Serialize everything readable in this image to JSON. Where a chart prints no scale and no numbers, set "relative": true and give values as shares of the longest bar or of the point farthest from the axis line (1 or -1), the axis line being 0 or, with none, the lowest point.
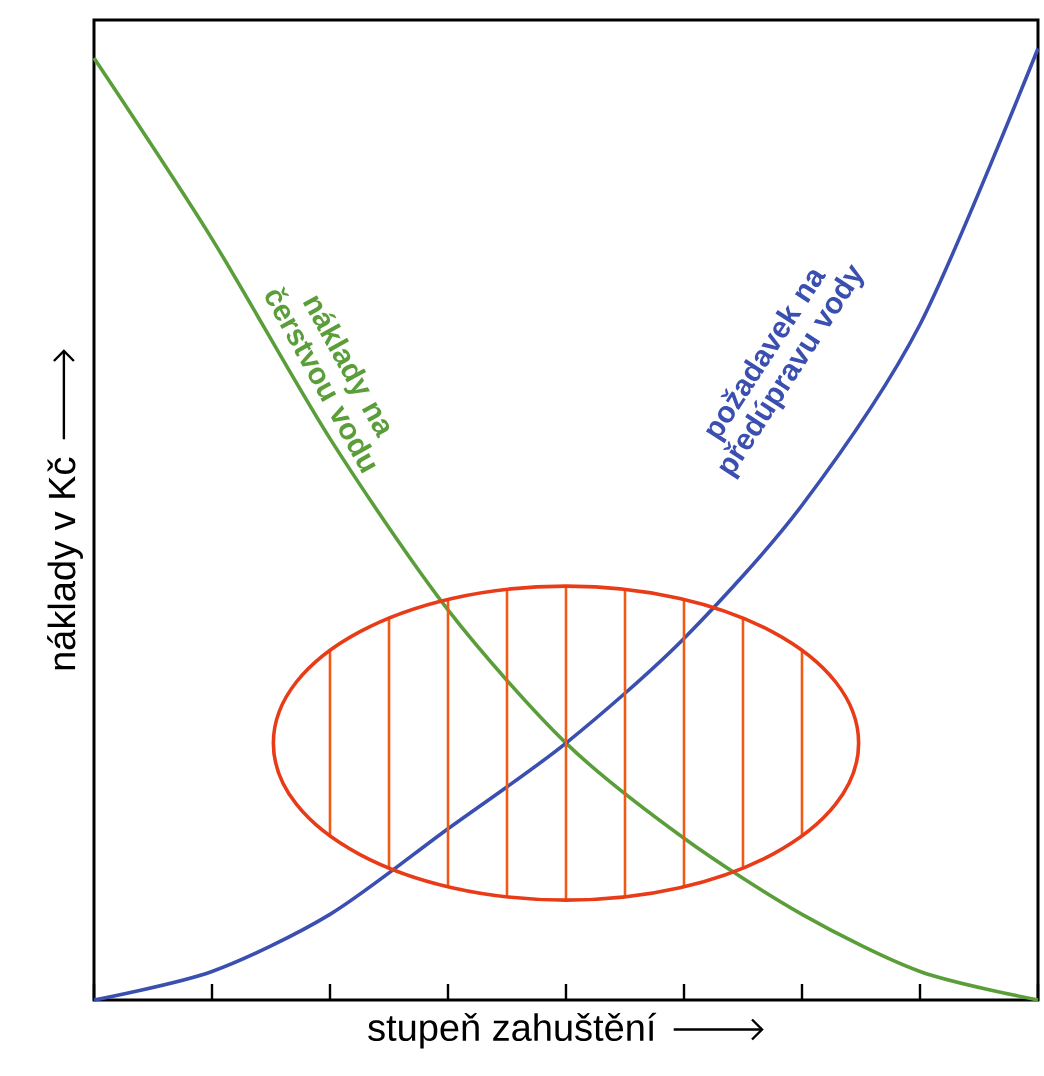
{
  "chart_data": {
    "type": "line",
    "relative": true,
    "xlabel": "stupeň zahuštění",
    "ylabel": "náklady v Kč",
    "categories": [
      null,
      null,
      null,
      null,
      null,
      null,
      null,
      null,
      null
    ],
    "legend": false,
    "series": [
      {
        "name": "náklady na čerstvou vodu",
        "color": "#5a9e3a",
        "values": [
          0.99,
          0.8,
          0.59,
          0.41,
          0.27,
          0.17,
          0.09,
          0.03,
          0
        ]
      },
      {
        "name": "požadavek na předúpravu vody",
        "color": "#3a4fb0",
        "values": [
          0,
          0.03,
          0.09,
          0.18,
          0.27,
          0.38,
          0.52,
          0.71,
          1.0
        ]
      }
    ]
  }
}
